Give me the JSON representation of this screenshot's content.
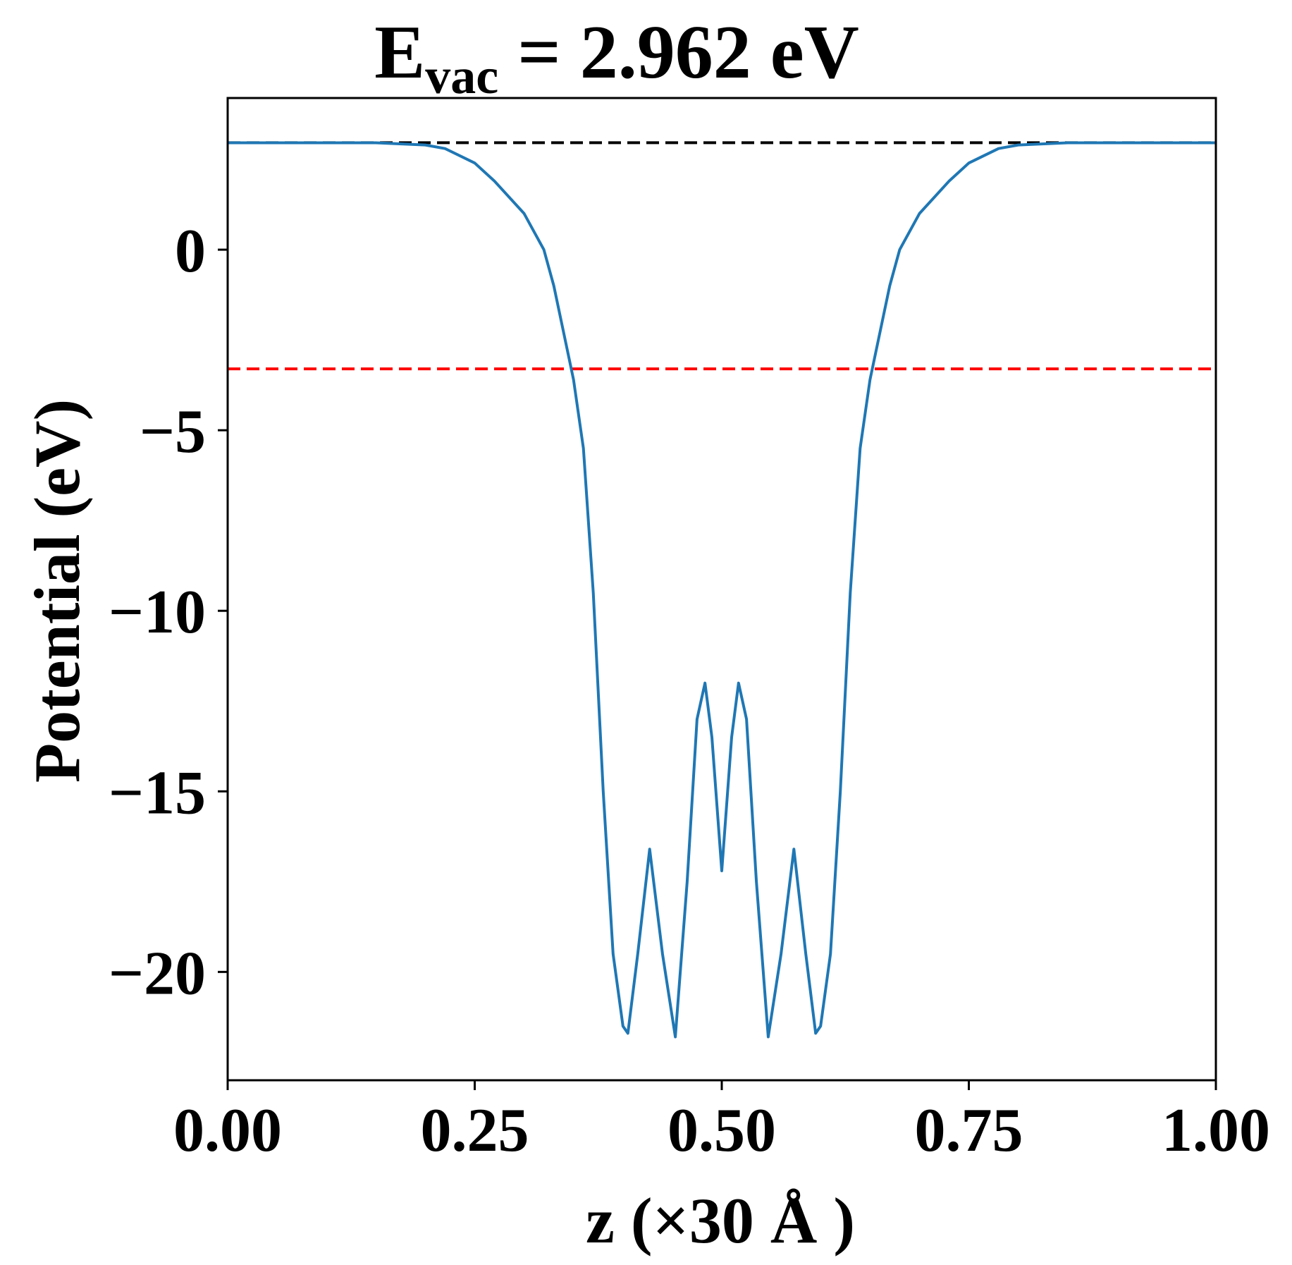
{
  "chart_data": {
    "type": "line",
    "title": {
      "main": "E",
      "subscript": "vac",
      "rest": " = 2.962 eV"
    },
    "xlabel": "z (×30 Å )",
    "ylabel": "Potential (eV)",
    "xlim": [
      0.0,
      1.0
    ],
    "ylim": [
      -23.0,
      4.2
    ],
    "xticks": [
      0.0,
      0.25,
      0.5,
      0.75,
      1.0
    ],
    "xtick_labels": [
      "0.00",
      "0.25",
      "0.50",
      "0.75",
      "1.00"
    ],
    "yticks": [
      0,
      -5,
      -10,
      -15,
      -20
    ],
    "ytick_labels": [
      "0",
      "−5",
      "−10",
      "−15",
      "−20"
    ],
    "grid": false,
    "legend": "none",
    "reference_lines": [
      {
        "y": 2.962,
        "color": "#000000",
        "style": "dashed",
        "x_range": [
          0.0,
          1.0
        ]
      },
      {
        "y": -3.3,
        "color": "#ff0000",
        "style": "dashed",
        "x_range": [
          0.0,
          1.0
        ]
      }
    ],
    "series": [
      {
        "color": "#1f77b4",
        "x": [
          0.0,
          0.05,
          0.1,
          0.15,
          0.2,
          0.22,
          0.25,
          0.27,
          0.3,
          0.32,
          0.33,
          0.34,
          0.35,
          0.36,
          0.37,
          0.38,
          0.39,
          0.4,
          0.405,
          0.415,
          0.427,
          0.44,
          0.453,
          0.465,
          0.475,
          0.483,
          0.49,
          0.5,
          0.51,
          0.517,
          0.525,
          0.535,
          0.547,
          0.56,
          0.573,
          0.585,
          0.595,
          0.6,
          0.61,
          0.62,
          0.63,
          0.64,
          0.65,
          0.66,
          0.67,
          0.68,
          0.7,
          0.73,
          0.75,
          0.78,
          0.8,
          0.85,
          0.9,
          0.95,
          1.0
        ],
        "y": [
          2.96,
          2.96,
          2.96,
          2.96,
          2.9,
          2.8,
          2.4,
          1.9,
          1.0,
          0.0,
          -1.0,
          -2.3,
          -3.6,
          -5.5,
          -9.5,
          -15.0,
          -19.5,
          -21.5,
          -21.7,
          -19.5,
          -16.6,
          -19.5,
          -21.8,
          -17.5,
          -13.0,
          -12.0,
          -13.5,
          -17.2,
          -13.5,
          -12.0,
          -13.0,
          -17.5,
          -21.8,
          -19.5,
          -16.6,
          -19.5,
          -21.7,
          -21.5,
          -19.5,
          -15.0,
          -9.5,
          -5.5,
          -3.6,
          -2.3,
          -1.0,
          0.0,
          1.0,
          1.9,
          2.4,
          2.8,
          2.9,
          2.96,
          2.96,
          2.96,
          2.96
        ]
      }
    ]
  }
}
